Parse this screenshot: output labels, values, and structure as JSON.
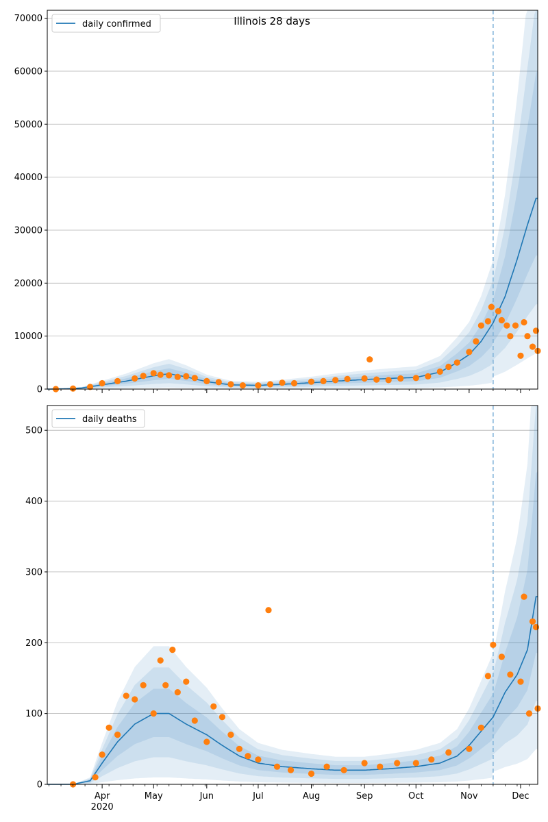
{
  "chart_data": [
    {
      "type": "line",
      "title": "Illinois 28 days",
      "xlabel": "",
      "ylabel": "",
      "ylim": [
        0,
        71500
      ],
      "yticks": [
        0,
        10000,
        20000,
        30000,
        40000,
        50000,
        60000,
        70000
      ],
      "ytick_labels": [
        "0",
        "10000",
        "20000",
        "30000",
        "40000",
        "50000",
        "60000",
        "70000"
      ],
      "grid": "horizontal",
      "legend": {
        "placement": "top-left",
        "entries": [
          "daily confirmed"
        ]
      },
      "forecast_start": "2020-11-15",
      "series": [
        {
          "name": "daily confirmed",
          "color": "#1f77b4",
          "x": [
            "2020-03-01",
            "2020-03-10",
            "2020-03-20",
            "2020-04-01",
            "2020-04-15",
            "2020-05-01",
            "2020-05-10",
            "2020-05-20",
            "2020-06-01",
            "2020-06-15",
            "2020-07-01",
            "2020-07-15",
            "2020-08-01",
            "2020-08-15",
            "2020-09-01",
            "2020-09-15",
            "2020-10-01",
            "2020-10-15",
            "2020-10-25",
            "2020-11-01",
            "2020-11-08",
            "2020-11-15",
            "2020-11-22",
            "2020-11-29",
            "2020-12-05",
            "2020-12-10"
          ],
          "y": [
            0,
            50,
            200,
            800,
            1500,
            2500,
            2900,
            2300,
            1400,
            800,
            700,
            900,
            1200,
            1500,
            1800,
            2000,
            2200,
            3200,
            5000,
            6500,
            9000,
            12500,
            17500,
            24500,
            31000,
            36000
          ]
        },
        {
          "name": "",
          "role": "observed",
          "color": "#ff7f0e",
          "x": [
            "2020-03-05",
            "2020-03-15",
            "2020-03-25",
            "2020-04-01",
            "2020-04-10",
            "2020-04-20",
            "2020-04-25",
            "2020-05-01",
            "2020-05-05",
            "2020-05-10",
            "2020-05-15",
            "2020-05-20",
            "2020-05-25",
            "2020-06-01",
            "2020-06-08",
            "2020-06-15",
            "2020-06-22",
            "2020-07-01",
            "2020-07-08",
            "2020-07-15",
            "2020-07-22",
            "2020-08-01",
            "2020-08-08",
            "2020-08-15",
            "2020-08-22",
            "2020-09-01",
            "2020-09-04",
            "2020-09-08",
            "2020-09-15",
            "2020-09-22",
            "2020-10-01",
            "2020-10-08",
            "2020-10-15",
            "2020-10-20",
            "2020-10-25",
            "2020-11-01",
            "2020-11-05",
            "2020-11-08",
            "2020-11-12",
            "2020-11-14",
            "2020-11-18",
            "2020-11-20",
            "2020-11-23",
            "2020-11-25",
            "2020-11-28",
            "2020-12-01",
            "2020-12-03",
            "2020-12-05",
            "2020-12-08",
            "2020-12-10",
            "2020-12-11"
          ],
          "y": [
            0,
            100,
            400,
            1100,
            1500,
            2000,
            2500,
            3000,
            2700,
            2600,
            2300,
            2400,
            2100,
            1500,
            1300,
            900,
            700,
            700,
            900,
            1200,
            1100,
            1400,
            1500,
            1700,
            1900,
            2000,
            5600,
            1800,
            1700,
            2000,
            2100,
            2400,
            3300,
            4200,
            5000,
            7000,
            9000,
            12000,
            12800,
            15500,
            14700,
            13000,
            12000,
            10000,
            12000,
            6300,
            12600,
            10000,
            8000,
            11000,
            7200
          ]
        }
      ]
    },
    {
      "type": "line",
      "title": "",
      "xlabel": "",
      "ylabel": "",
      "ylim": [
        0,
        535
      ],
      "yticks": [
        0,
        100,
        200,
        300,
        400,
        500
      ],
      "ytick_labels": [
        "0",
        "100",
        "200",
        "300",
        "400",
        "500"
      ],
      "grid": "horizontal",
      "legend": {
        "placement": "top-left",
        "entries": [
          "daily deaths"
        ]
      },
      "forecast_start": "2020-11-15",
      "x_ticks": [
        {
          "date": "2020-04-01",
          "label": "Apr"
        },
        {
          "date": "2020-05-01",
          "label": "May"
        },
        {
          "date": "2020-06-01",
          "label": "Jun"
        },
        {
          "date": "2020-07-01",
          "label": "Jul"
        },
        {
          "date": "2020-08-01",
          "label": "Aug"
        },
        {
          "date": "2020-09-01",
          "label": "Sep"
        },
        {
          "date": "2020-10-01",
          "label": "Oct"
        },
        {
          "date": "2020-11-01",
          "label": "Nov"
        },
        {
          "date": "2020-12-01",
          "label": "Dec"
        }
      ],
      "x_year_label": "2020",
      "series": [
        {
          "name": "daily deaths",
          "color": "#1f77b4",
          "x": [
            "2020-03-01",
            "2020-03-15",
            "2020-03-25",
            "2020-04-01",
            "2020-04-10",
            "2020-04-20",
            "2020-05-01",
            "2020-05-10",
            "2020-05-20",
            "2020-06-01",
            "2020-06-10",
            "2020-06-20",
            "2020-07-01",
            "2020-07-15",
            "2020-08-01",
            "2020-08-15",
            "2020-09-01",
            "2020-09-15",
            "2020-10-01",
            "2020-10-15",
            "2020-10-25",
            "2020-11-01",
            "2020-11-08",
            "2020-11-15",
            "2020-11-22",
            "2020-11-29",
            "2020-12-05",
            "2020-12-10"
          ],
          "y": [
            0,
            0,
            5,
            30,
            60,
            85,
            100,
            100,
            85,
            70,
            55,
            40,
            30,
            25,
            22,
            20,
            20,
            22,
            25,
            30,
            40,
            55,
            75,
            95,
            130,
            155,
            190,
            265
          ]
        },
        {
          "name": "",
          "role": "observed",
          "color": "#ff7f0e",
          "x": [
            "2020-03-15",
            "2020-03-28",
            "2020-04-01",
            "2020-04-05",
            "2020-04-10",
            "2020-04-15",
            "2020-04-20",
            "2020-04-25",
            "2020-05-01",
            "2020-05-05",
            "2020-05-08",
            "2020-05-12",
            "2020-05-15",
            "2020-05-20",
            "2020-05-25",
            "2020-06-01",
            "2020-06-05",
            "2020-06-10",
            "2020-06-15",
            "2020-06-20",
            "2020-06-25",
            "2020-07-01",
            "2020-07-07",
            "2020-07-12",
            "2020-07-20",
            "2020-08-01",
            "2020-08-10",
            "2020-08-20",
            "2020-09-01",
            "2020-09-10",
            "2020-09-20",
            "2020-10-01",
            "2020-10-10",
            "2020-10-20",
            "2020-11-01",
            "2020-11-08",
            "2020-11-12",
            "2020-11-15",
            "2020-11-20",
            "2020-11-25",
            "2020-12-01",
            "2020-12-03",
            "2020-12-06",
            "2020-12-08",
            "2020-12-10",
            "2020-12-11"
          ],
          "y": [
            0,
            10,
            42,
            80,
            70,
            125,
            120,
            140,
            100,
            175,
            140,
            190,
            130,
            145,
            90,
            60,
            110,
            95,
            70,
            50,
            40,
            35,
            246,
            25,
            20,
            15,
            25,
            20,
            30,
            25,
            30,
            30,
            35,
            45,
            50,
            80,
            153,
            197,
            180,
            155,
            145,
            265,
            100,
            230,
            222,
            107
          ]
        }
      ]
    }
  ]
}
